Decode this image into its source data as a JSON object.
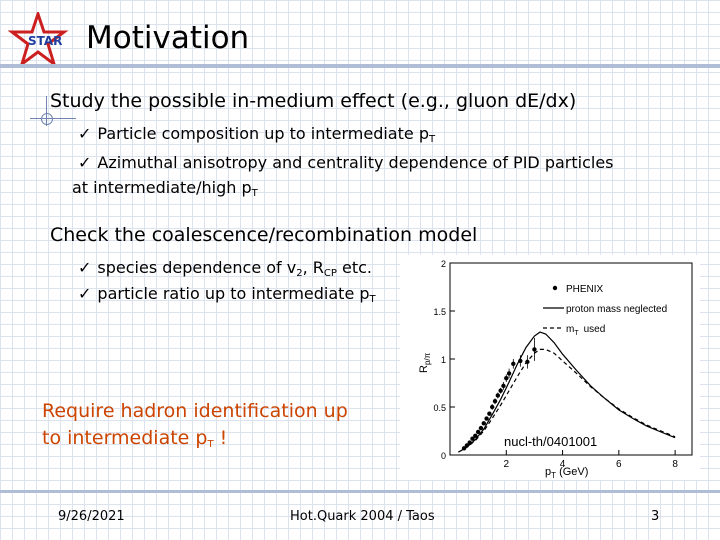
{
  "slide": {
    "title": "Motivation",
    "logo_text": "STAR"
  },
  "section1": {
    "heading": "Study the possible in-medium effect (e.g., gluon dE/dx)",
    "bullets": [
      {
        "text": "Particle composition up to intermediate p",
        "sub": "T"
      },
      {
        "text": "Azimuthal anisotropy and centrality dependence of PID particles",
        "continuation": "at intermediate/high p",
        "sub": "T"
      }
    ]
  },
  "section2": {
    "heading": "Check the coalescence/recombination model",
    "bullets": [
      {
        "text_a": "species dependence of v",
        "sub_a": "2",
        "text_b": ", R",
        "sub_b": "CP",
        "text_c": " etc."
      },
      {
        "text": "particle ratio up to intermediate p",
        "sub": "T"
      }
    ]
  },
  "callout": {
    "line1": "Require hadron identification up",
    "line2_a": "to intermediate p",
    "line2_sub": "T",
    "line2_b": " !"
  },
  "footer": {
    "date": "9/26/2021",
    "event": "Hot.Quark 2004 / Taos",
    "page": "3"
  },
  "colors": {
    "accent_orange": "#cc4400",
    "grid": "#dde3ee",
    "rule": "#b0bdd6",
    "star_red": "#cc1f1f",
    "star_blue": "#1f3f9f"
  },
  "chart_data": {
    "type": "line",
    "xlabel": "p",
    "xlabel_sub": "T",
    "xlabel_unit": " (GeV)",
    "ylabel": "R",
    "ylabel_sub": "p/π",
    "xlim": [
      0,
      8.6
    ],
    "ylim": [
      0,
      2
    ],
    "xticks": [
      2,
      4,
      6,
      8
    ],
    "yticks": [
      0,
      0.5,
      1,
      1.5,
      2
    ],
    "ytick_labels": [
      "0",
      "0.5",
      "1",
      "1.5",
      "2"
    ],
    "legend": [
      "PHENIX",
      "proton mass neglected",
      "m",
      "used"
    ],
    "legend_sub": "T",
    "annotation": "nucl-th/0401001",
    "series": [
      {
        "name": "PHENIX",
        "style": "points",
        "x": [
          0.5,
          0.6,
          0.7,
          0.8,
          0.9,
          1.0,
          1.1,
          1.2,
          1.3,
          1.4,
          1.5,
          1.6,
          1.7,
          1.8,
          1.9,
          2.0,
          2.1,
          2.25,
          2.5,
          2.75,
          3.0
        ],
        "y": [
          0.07,
          0.1,
          0.13,
          0.17,
          0.2,
          0.24,
          0.28,
          0.33,
          0.38,
          0.43,
          0.5,
          0.56,
          0.62,
          0.67,
          0.72,
          0.8,
          0.85,
          0.95,
          0.98,
          0.97,
          1.1
        ],
        "err": [
          0.01,
          0.01,
          0.01,
          0.01,
          0.01,
          0.02,
          0.02,
          0.02,
          0.02,
          0.02,
          0.03,
          0.03,
          0.03,
          0.03,
          0.04,
          0.04,
          0.05,
          0.05,
          0.06,
          0.07,
          0.12
        ]
      },
      {
        "name": "proton mass neglected",
        "style": "solid",
        "x": [
          0.3,
          0.6,
          0.9,
          1.2,
          1.5,
          1.8,
          2.1,
          2.4,
          2.7,
          3.0,
          3.2,
          3.4,
          3.7,
          4.0,
          4.5,
          5.0,
          5.5,
          6.0,
          6.5,
          7.0,
          7.5,
          8.0
        ],
        "y": [
          0.03,
          0.08,
          0.16,
          0.27,
          0.42,
          0.58,
          0.76,
          0.95,
          1.12,
          1.24,
          1.28,
          1.26,
          1.17,
          1.05,
          0.88,
          0.72,
          0.59,
          0.47,
          0.38,
          0.3,
          0.24,
          0.18
        ]
      },
      {
        "name": "mT used",
        "style": "dashed",
        "x": [
          0.3,
          0.6,
          0.9,
          1.2,
          1.5,
          1.8,
          2.1,
          2.4,
          2.7,
          3.0,
          3.2,
          3.4,
          3.7,
          4.0,
          4.5,
          5.0,
          5.5,
          6.0,
          6.5,
          7.0,
          7.5,
          8.0
        ],
        "y": [
          0.03,
          0.08,
          0.15,
          0.25,
          0.38,
          0.52,
          0.67,
          0.82,
          0.96,
          1.06,
          1.1,
          1.1,
          1.06,
          0.98,
          0.85,
          0.71,
          0.59,
          0.48,
          0.39,
          0.31,
          0.25,
          0.19
        ]
      }
    ]
  }
}
